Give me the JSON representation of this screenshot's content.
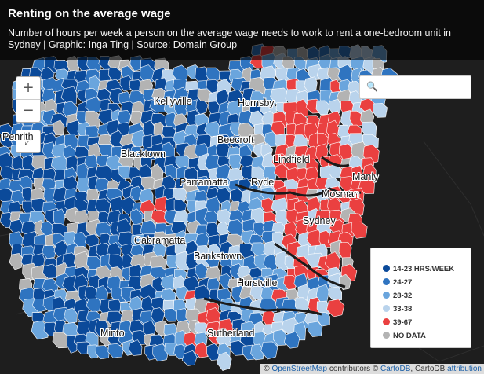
{
  "header": {
    "title": "Renting on the average wage",
    "subtitle": "Number of hours per week a person on the average wage needs to work to rent a one-bedroom unit in Sydney | Graphic: Inga Ting | Source: Domain Group"
  },
  "controls": {
    "zoom_in": "+",
    "zoom_out": "−",
    "expand": "⤢",
    "search_icon": "magnifier-icon",
    "search_placeholder": ""
  },
  "places": [
    {
      "name": "Kellyville"
    },
    {
      "name": "Hornsby"
    },
    {
      "name": "Penrith"
    },
    {
      "name": "Blacktown"
    },
    {
      "name": "Beecroft"
    },
    {
      "name": "Lindfield"
    },
    {
      "name": "Manly"
    },
    {
      "name": "Parramatta"
    },
    {
      "name": "Ryde"
    },
    {
      "name": "Mosman"
    },
    {
      "name": "Sydney"
    },
    {
      "name": "Cabramatta"
    },
    {
      "name": "Bankstown"
    },
    {
      "name": "Hurstville"
    },
    {
      "name": "Minto"
    },
    {
      "name": "Sutherland"
    }
  ],
  "legend": {
    "items": [
      {
        "label": "14-23 HRS/WEEK",
        "color": "#0b4a9a"
      },
      {
        "label": "24-27",
        "color": "#2f74c0"
      },
      {
        "label": "28-32",
        "color": "#6aa5dd"
      },
      {
        "label": "33-38",
        "color": "#b9d3ec"
      },
      {
        "label": "39-67",
        "color": "#ea4040"
      },
      {
        "label": "NO DATA",
        "color": "#b3b3b3"
      }
    ]
  },
  "attribution": {
    "prefix": "©",
    "osm": "OpenStreetMap",
    "mid": "contributors ©",
    "carto": "CartoDB",
    "mid2": ", CartoDB",
    "attr": "attribution"
  }
}
